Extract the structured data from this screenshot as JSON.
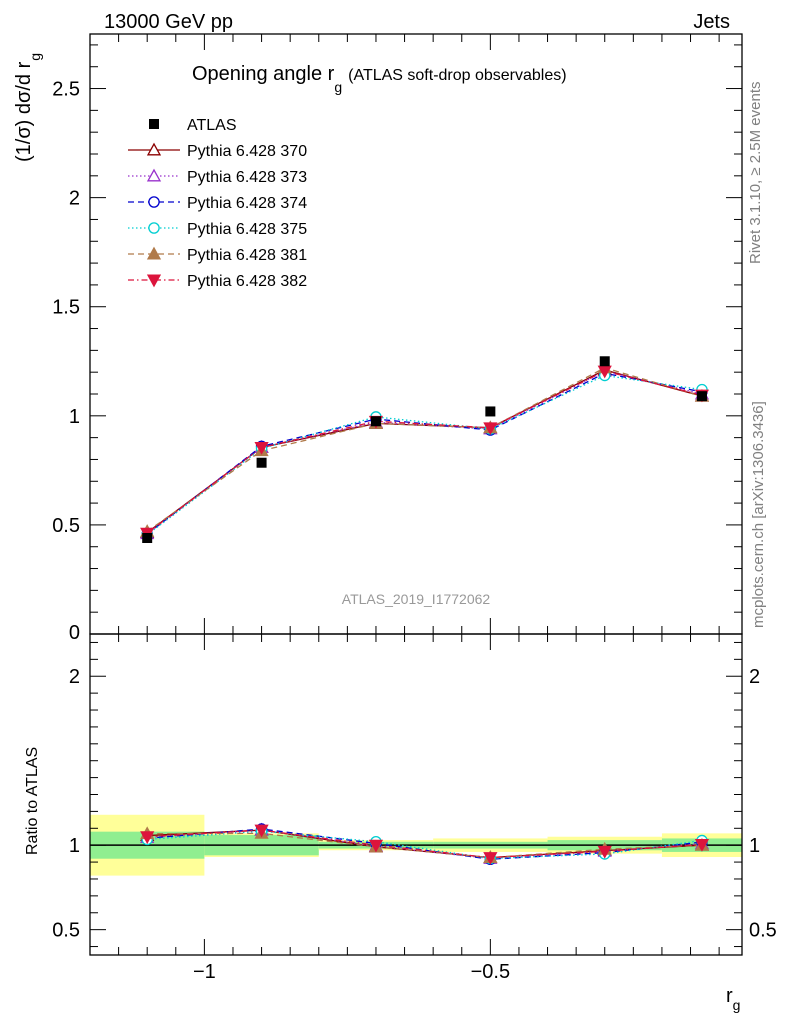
{
  "header": {
    "left": "13000 GeV pp",
    "right": "Jets"
  },
  "side_labels": {
    "rivet": "Rivet 3.1.10, ≥ 2.5M events",
    "mcplots": "mcplots.cern.ch [arXiv:1306.3436]"
  },
  "chart_data": {
    "type": "line",
    "title_main": "Opening angle r",
    "title_sub": "g",
    "title_paren": "(ATLAS soft-drop observables)",
    "watermark": "ATLAS_2019_I1772062",
    "ylabel_main": "(1/σ) dσ/d r",
    "ylabel_sub": "g",
    "ratio_ylabel": "Ratio to ATLAS",
    "xlabel_main": "r",
    "xlabel_sub": "g",
    "xlim": [
      -1.2,
      -0.06
    ],
    "ylim": [
      0,
      2.75
    ],
    "ratio_ylim": [
      0.35,
      2.25
    ],
    "x_ticks": [
      -1,
      -0.5
    ],
    "x_tick_labels": [
      "−1",
      "−0.5"
    ],
    "y_ticks": [
      0.5,
      1,
      1.5,
      2,
      2.5
    ],
    "y_tick_labels": [
      "0.5",
      "1",
      "1.5",
      "2",
      "2.5"
    ],
    "y_zero_label": "0",
    "ratio_ticks": [
      0.5,
      1,
      2
    ],
    "ratio_tick_labels": [
      "0.5",
      "1",
      "2"
    ],
    "bins": [
      [
        -1.2,
        -1.0
      ],
      [
        -1.0,
        -0.8
      ],
      [
        -0.8,
        -0.6
      ],
      [
        -0.6,
        -0.4
      ],
      [
        -0.4,
        -0.2
      ],
      [
        -0.2,
        -0.06
      ]
    ],
    "x": [
      -1.1,
      -0.9,
      -0.7,
      -0.5,
      -0.3,
      -0.13
    ],
    "data": {
      "name": "ATLAS",
      "values": [
        0.44,
        0.785,
        0.975,
        1.02,
        1.25,
        1.09
      ],
      "band_inner": [
        0.08,
        0.06,
        0.02,
        0.02,
        0.03,
        0.04
      ],
      "band_outer": [
        0.18,
        0.07,
        0.03,
        0.04,
        0.05,
        0.07
      ]
    },
    "series": [
      {
        "name": "Pythia 6.428 370",
        "color": "#8b0000",
        "marker": "triangle-open",
        "dash": "",
        "values": [
          0.465,
          0.855,
          0.965,
          0.945,
          1.21,
          1.09
        ]
      },
      {
        "name": "Pythia 6.428 373",
        "color": "#9932cc",
        "marker": "triangle-open",
        "dash": "1.5,2.5",
        "values": [
          0.46,
          0.855,
          0.97,
          0.94,
          1.205,
          1.1
        ]
      },
      {
        "name": "Pythia 6.428 374",
        "color": "#0000cd",
        "marker": "circle-open",
        "dash": "6,4",
        "values": [
          0.458,
          0.86,
          0.985,
          0.935,
          1.195,
          1.11
        ]
      },
      {
        "name": "Pythia 6.428 375",
        "color": "#00ced1",
        "marker": "circle-open",
        "dash": "1.5,2.5",
        "values": [
          0.455,
          0.85,
          0.995,
          0.94,
          1.185,
          1.12
        ]
      },
      {
        "name": "Pythia 6.428 381",
        "color": "#b07a4a",
        "marker": "triangle-filled",
        "dash": "6,4",
        "values": [
          0.47,
          0.84,
          0.965,
          0.945,
          1.22,
          1.09
        ]
      },
      {
        "name": "Pythia 6.428 382",
        "color": "#dc143c",
        "marker": "triangle-down-filled",
        "dash": "6,3,1.5,3",
        "values": [
          0.462,
          0.855,
          0.975,
          0.945,
          1.205,
          1.095
        ]
      }
    ],
    "colors": {
      "band_inner": "#90ee90",
      "band_outer": "#ffff99",
      "data_marker": "#000000",
      "watermark": "#999999",
      "side_text": "#808080"
    }
  }
}
